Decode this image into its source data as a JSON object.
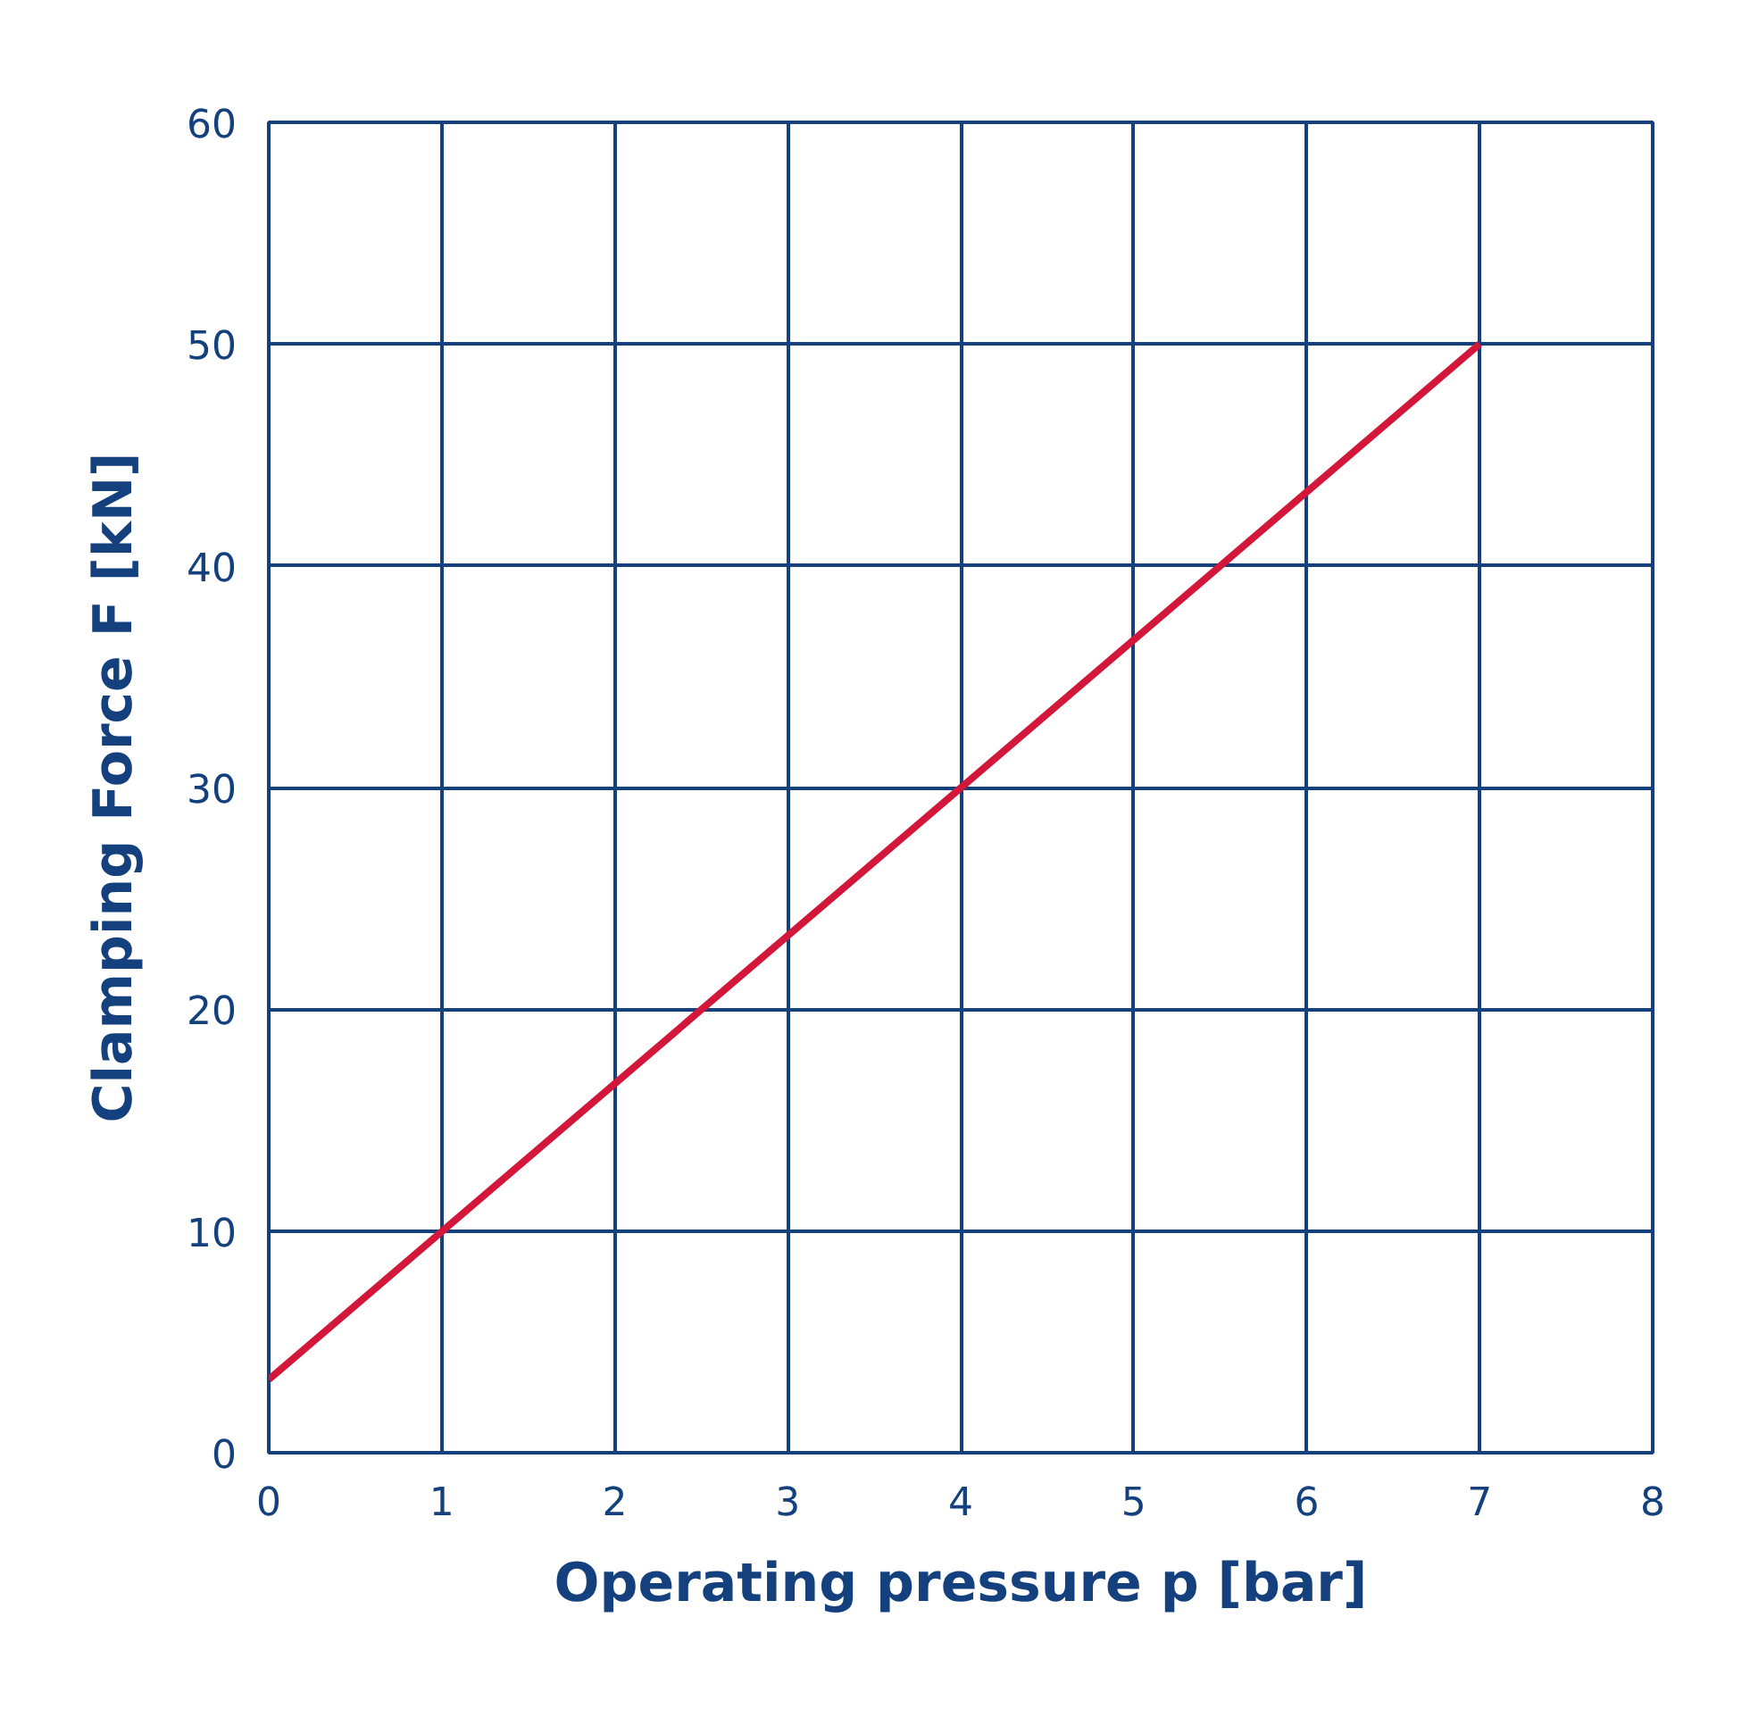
{
  "chart_data": {
    "type": "line",
    "xlabel": "Operating pressure p [bar]",
    "ylabel": "Clamping Force F [kN]",
    "x": [
      0,
      7
    ],
    "series": [
      {
        "color": "#d3173a",
        "values": [
          3.3,
          50
        ]
      }
    ],
    "xlim": [
      0,
      8
    ],
    "ylim": [
      0,
      60
    ],
    "xticks": [
      0,
      1,
      2,
      3,
      4,
      5,
      6,
      7,
      8
    ],
    "yticks": [
      0,
      10,
      20,
      30,
      40,
      50,
      60
    ],
    "grid": true,
    "marker": "none",
    "line_style": "solid"
  }
}
